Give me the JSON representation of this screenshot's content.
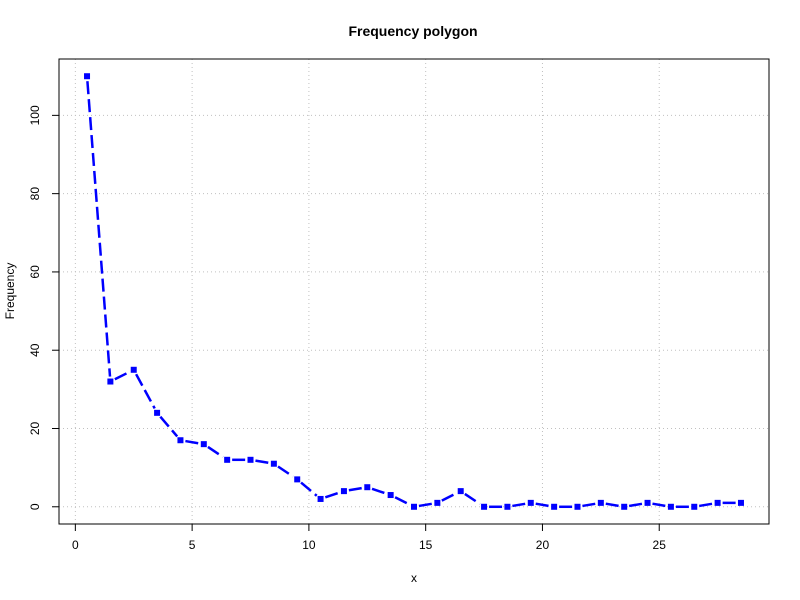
{
  "chart_data": {
    "type": "line",
    "title": "Frequency polygon",
    "xlabel": "x",
    "ylabel": "Frequency",
    "xlim": [
      -0.7,
      29.7
    ],
    "ylim": [
      -4.4,
      114.4
    ],
    "xticks": [
      0,
      5,
      10,
      15,
      20,
      25
    ],
    "yticks": [
      0,
      20,
      40,
      60,
      80,
      100
    ],
    "grid": true,
    "series_color": "#0000ff",
    "grid_color": "#c0c0c0",
    "x": [
      0.5,
      1.5,
      2.5,
      3.5,
      4.5,
      5.5,
      6.5,
      7.5,
      8.5,
      9.5,
      10.5,
      11.5,
      12.5,
      13.5,
      14.5,
      15.5,
      16.5,
      17.5,
      18.5,
      19.5,
      20.5,
      21.5,
      22.5,
      23.5,
      24.5,
      25.5,
      26.5,
      27.5,
      28.5
    ],
    "y": [
      110,
      32,
      35,
      24,
      17,
      16,
      12,
      12,
      11,
      7,
      2,
      4,
      5,
      3,
      0,
      1,
      4,
      0,
      0,
      1,
      0,
      0,
      1,
      0,
      1,
      0,
      0,
      1,
      1
    ]
  }
}
